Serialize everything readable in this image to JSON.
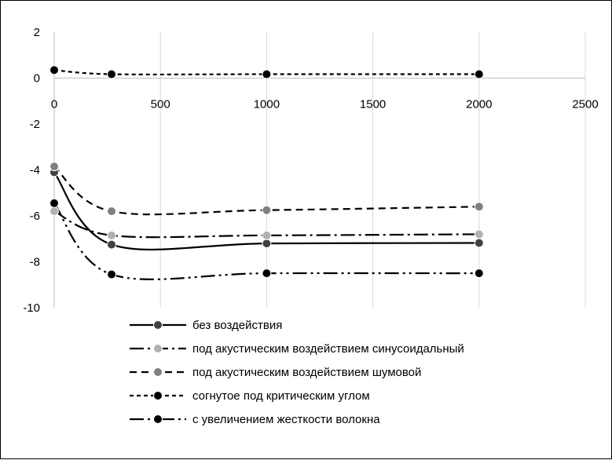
{
  "chart_data": {
    "type": "line",
    "title": "",
    "xlabel": "",
    "ylabel": "",
    "xlim": [
      0,
      2500
    ],
    "ylim": [
      -10,
      2
    ],
    "x_ticks": [
      0,
      500,
      1000,
      1500,
      2000,
      2500
    ],
    "y_ticks": [
      2,
      0,
      -2,
      -4,
      -6,
      -8,
      -10
    ],
    "x_tick_labels": [
      "0",
      "500",
      "1000",
      "1500",
      "2000",
      "2500"
    ],
    "y_tick_labels": [
      "2",
      "0",
      "-2",
      "-4",
      "-6",
      "-8",
      "-10"
    ],
    "grid": "vertical",
    "legend_position": "bottom",
    "smooth": true,
    "x": [
      0,
      270,
      1000,
      2000
    ],
    "series": [
      {
        "name": "без воздействия",
        "values": [
          -4.1,
          -7.25,
          -7.2,
          -7.18
        ],
        "color": "#000000",
        "marker": "#404040",
        "dash": "solid"
      },
      {
        "name": "под акустическим воздействием синусоидальный",
        "values": [
          -5.8,
          -6.85,
          -6.85,
          -6.8
        ],
        "color": "#000000",
        "marker": "#b0b0b0",
        "dash": "long-dash-dot"
      },
      {
        "name": "под акустическим воздействием шумовой",
        "values": [
          -3.85,
          -5.8,
          -5.75,
          -5.6
        ],
        "color": "#000000",
        "marker": "#808080",
        "dash": "dash"
      },
      {
        "name": "согнутое под критическим углом",
        "values": [
          0.35,
          0.17,
          0.17,
          0.17
        ],
        "color": "#000000",
        "marker": "#000000",
        "dash": "short-dash"
      },
      {
        "name": "с увеличением жесткости волокна",
        "values": [
          -5.45,
          -8.55,
          -8.5,
          -8.5
        ],
        "color": "#000000",
        "marker": "#000000",
        "dash": "long-dash-dot-dot"
      }
    ]
  }
}
